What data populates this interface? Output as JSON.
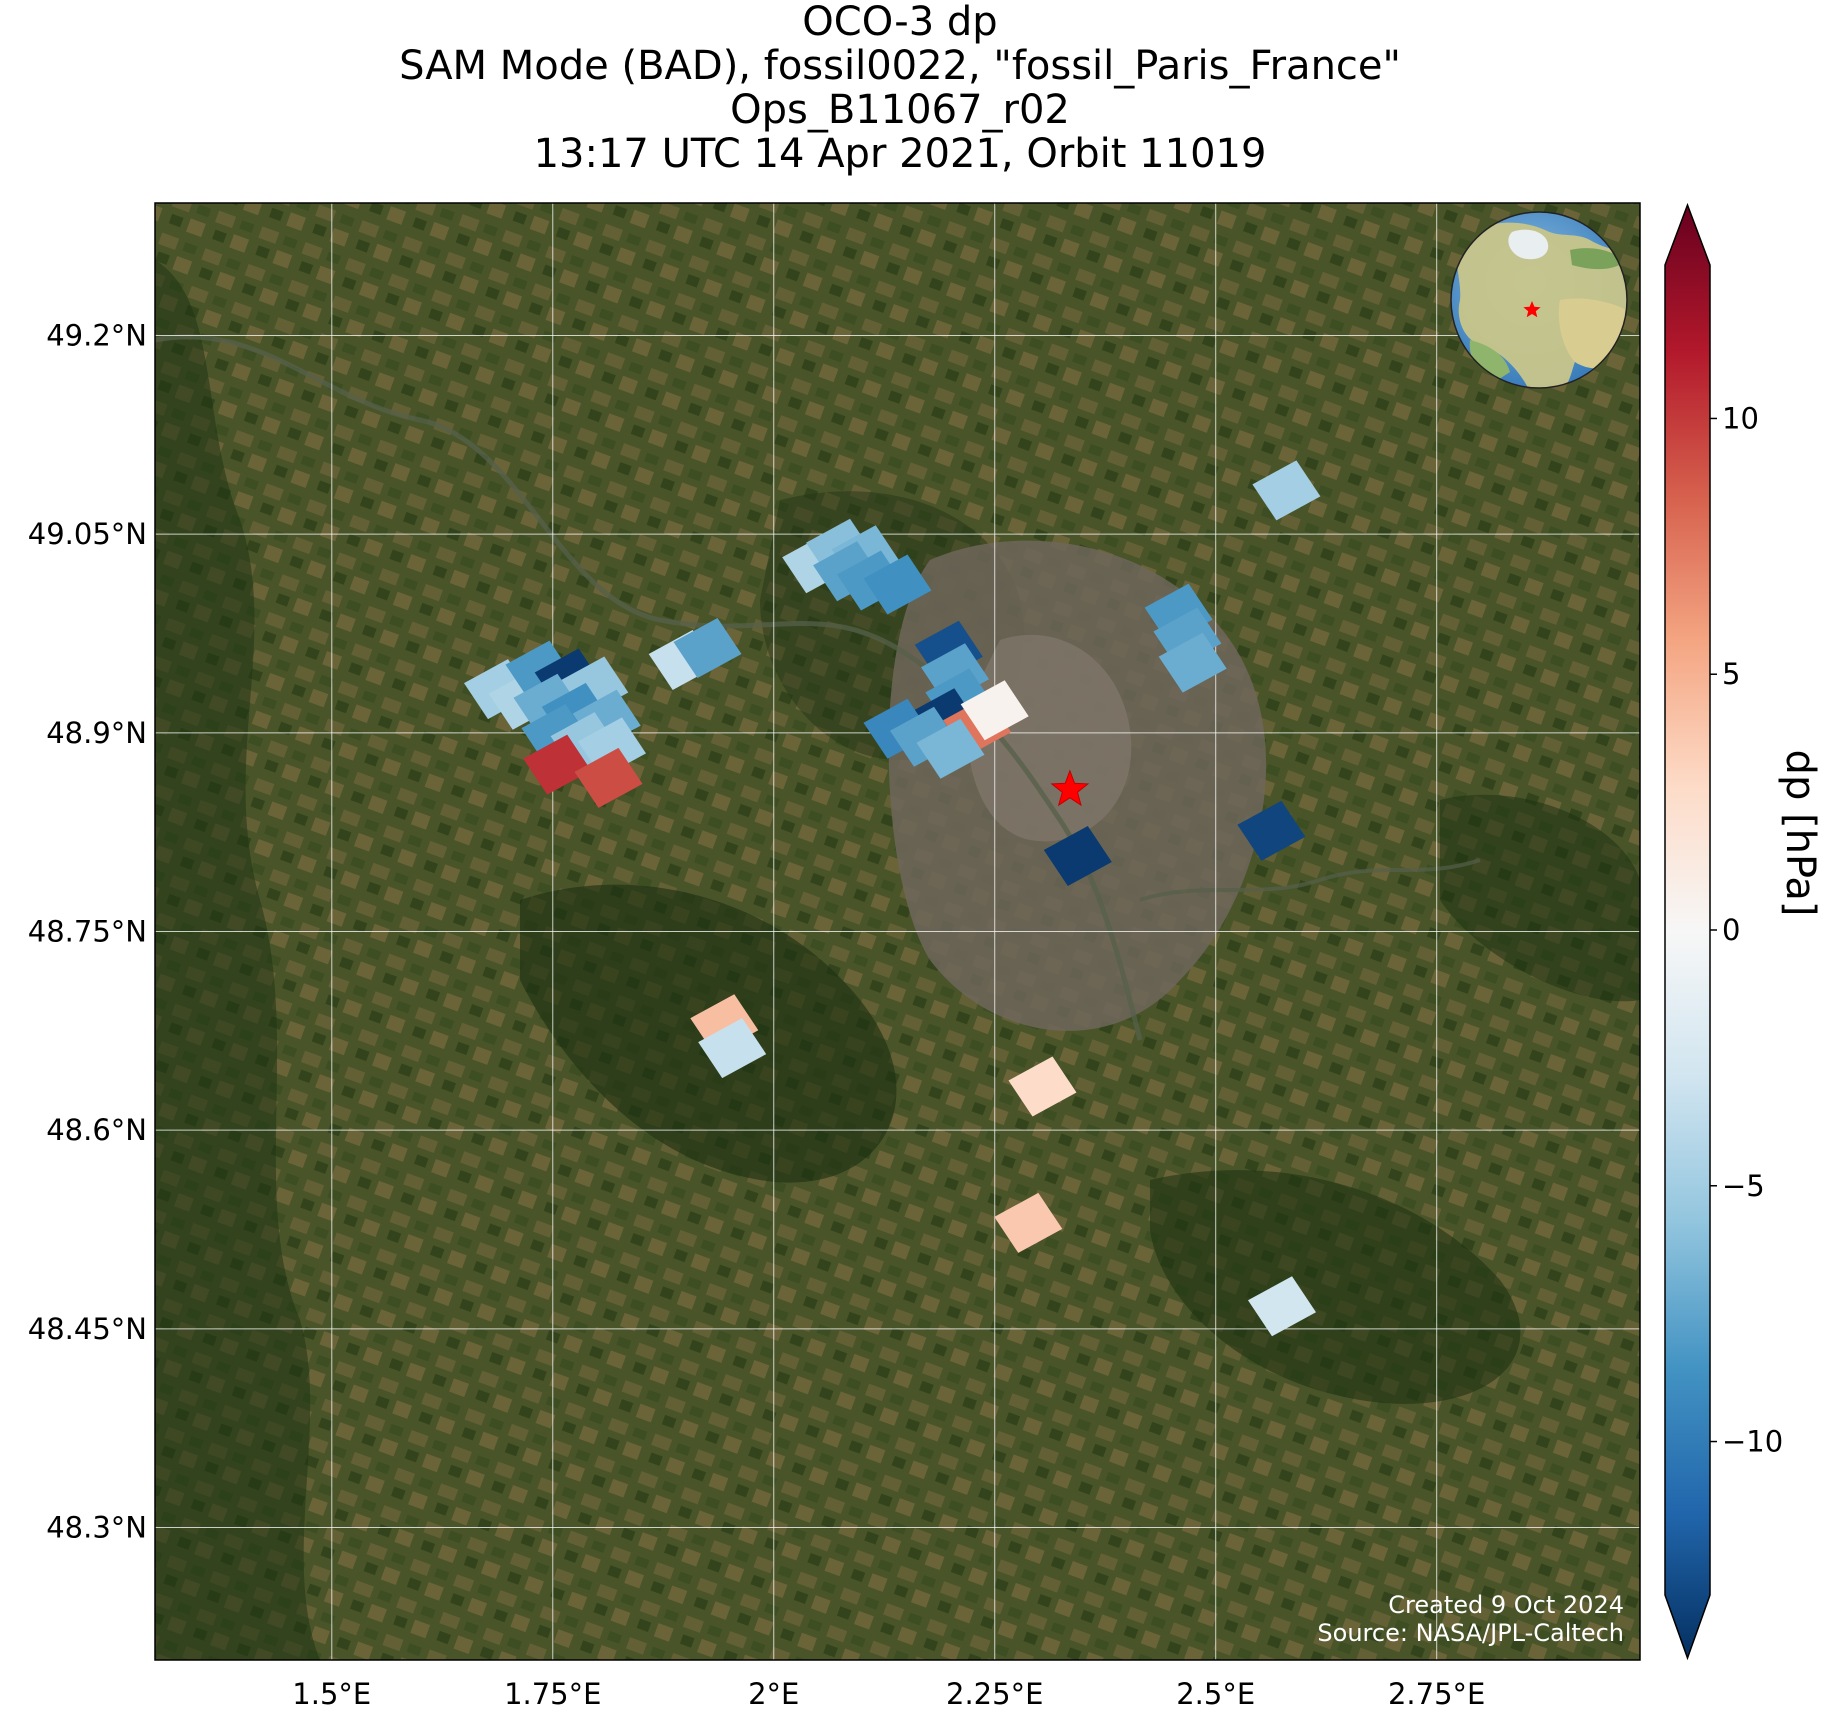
{
  "title": {
    "line1": "OCO-3 dp",
    "line2": "SAM Mode (BAD), fossil0022, \"fossil_Paris_France\"",
    "line3": "Ops_B11067_r02",
    "line4": "13:17 UTC 14 Apr 2021, Orbit 11019"
  },
  "colors": {
    "land_base": "#3f4a26",
    "forest": "#1f3514",
    "urban": "#6f665a",
    "grid": "#ffffff",
    "target_star": "#ff0000"
  },
  "map": {
    "lon_range": [
      1.3,
      2.98
    ],
    "lat_range": [
      48.2,
      49.3
    ],
    "target": {
      "name": "fossil_Paris_France",
      "lon": 2.335,
      "lat": 48.857
    },
    "inset_globe": {
      "icon": "globe-icon",
      "marker": "star-icon"
    }
  },
  "chart_data": {
    "type": "heatmap",
    "title": "OCO-3 dp",
    "x_ticks": [
      {
        "value": 1.5,
        "label": "1.5°E"
      },
      {
        "value": 1.75,
        "label": "1.75°E"
      },
      {
        "value": 2.0,
        "label": "2°E"
      },
      {
        "value": 2.25,
        "label": "2.25°E"
      },
      {
        "value": 2.5,
        "label": "2.5°E"
      },
      {
        "value": 2.75,
        "label": "2.75°E"
      }
    ],
    "y_ticks": [
      {
        "value": 49.2,
        "label": "49.2°N"
      },
      {
        "value": 49.05,
        "label": "49.05°N"
      },
      {
        "value": 48.9,
        "label": "48.9°N"
      },
      {
        "value": 48.75,
        "label": "48.75°N"
      },
      {
        "value": 48.6,
        "label": "48.6°N"
      },
      {
        "value": 48.45,
        "label": "48.45°N"
      },
      {
        "value": 48.3,
        "label": "48.3°N"
      }
    ],
    "grid": true,
    "colorbar": {
      "label": "dp [hPa]",
      "range": [
        -13,
        13
      ],
      "colormap": "RdBu_r",
      "extend": "both",
      "ticks": [
        {
          "value": 10,
          "label": "10"
        },
        {
          "value": 5,
          "label": "5"
        },
        {
          "value": 0,
          "label": "0"
        },
        {
          "value": -5,
          "label": "−5"
        },
        {
          "value": -10,
          "label": "−10"
        }
      ]
    },
    "soundings": [
      {
        "lon": 1.688,
        "lat": 48.933,
        "dp": -4.5
      },
      {
        "lon": 1.716,
        "lat": 48.925,
        "dp": -4.0
      },
      {
        "lon": 1.735,
        "lat": 48.947,
        "dp": -7.5
      },
      {
        "lon": 1.768,
        "lat": 48.941,
        "dp": -12.5
      },
      {
        "lon": 1.797,
        "lat": 48.935,
        "dp": -5.0
      },
      {
        "lon": 1.744,
        "lat": 48.922,
        "dp": -6.5
      },
      {
        "lon": 1.776,
        "lat": 48.915,
        "dp": -8.0
      },
      {
        "lon": 1.811,
        "lat": 48.91,
        "dp": -6.5
      },
      {
        "lon": 1.753,
        "lat": 48.899,
        "dp": -7.5
      },
      {
        "lon": 1.786,
        "lat": 48.893,
        "dp": -5.0
      },
      {
        "lon": 1.817,
        "lat": 48.889,
        "dp": -4.5
      },
      {
        "lon": 1.755,
        "lat": 48.876,
        "dp": 9.5
      },
      {
        "lon": 1.813,
        "lat": 48.866,
        "dp": 8.5
      },
      {
        "lon": 1.897,
        "lat": 48.955,
        "dp": -3.0
      },
      {
        "lon": 1.925,
        "lat": 48.964,
        "dp": -7.0
      },
      {
        "lon": 2.048,
        "lat": 49.028,
        "dp": -4.0
      },
      {
        "lon": 2.075,
        "lat": 49.039,
        "dp": -5.5
      },
      {
        "lon": 2.104,
        "lat": 49.034,
        "dp": -6.0
      },
      {
        "lon": 2.083,
        "lat": 49.022,
        "dp": -7.0
      },
      {
        "lon": 2.11,
        "lat": 49.015,
        "dp": -7.5
      },
      {
        "lon": 2.14,
        "lat": 49.012,
        "dp": -8.0
      },
      {
        "lon": 2.198,
        "lat": 48.962,
        "dp": -11.5
      },
      {
        "lon": 2.205,
        "lat": 48.945,
        "dp": -7.0
      },
      {
        "lon": 2.21,
        "lat": 48.926,
        "dp": -7.5
      },
      {
        "lon": 2.193,
        "lat": 48.911,
        "dp": -12.5
      },
      {
        "lon": 2.23,
        "lat": 48.905,
        "dp": 7.0
      },
      {
        "lon": 2.25,
        "lat": 48.917,
        "dp": 0.5
      },
      {
        "lon": 2.14,
        "lat": 48.903,
        "dp": -8.5
      },
      {
        "lon": 2.17,
        "lat": 48.897,
        "dp": -7.0
      },
      {
        "lon": 2.2,
        "lat": 48.888,
        "dp": -6.0
      },
      {
        "lon": 2.458,
        "lat": 48.99,
        "dp": -7.5
      },
      {
        "lon": 2.468,
        "lat": 48.972,
        "dp": -7.0
      },
      {
        "lon": 2.474,
        "lat": 48.953,
        "dp": -6.5
      },
      {
        "lon": 2.58,
        "lat": 49.083,
        "dp": -4.5
      },
      {
        "lon": 2.344,
        "lat": 48.807,
        "dp": -12.5
      },
      {
        "lon": 2.563,
        "lat": 48.826,
        "dp": -12.0
      },
      {
        "lon": 1.944,
        "lat": 48.68,
        "dp": 4.0
      },
      {
        "lon": 1.953,
        "lat": 48.662,
        "dp": -3.0
      },
      {
        "lon": 2.304,
        "lat": 48.633,
        "dp": 2.5
      },
      {
        "lon": 2.288,
        "lat": 48.53,
        "dp": 3.5
      },
      {
        "lon": 2.575,
        "lat": 48.467,
        "dp": -2.5
      }
    ]
  },
  "credits": {
    "created": "Created 9 Oct 2024",
    "source": "Source: NASA/JPL-Caltech"
  }
}
